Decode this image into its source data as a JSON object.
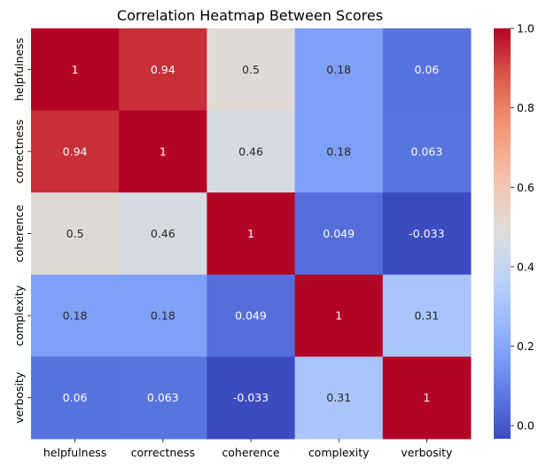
{
  "chart_data": {
    "type": "heatmap",
    "title": "Correlation Heatmap Between Scores",
    "xlabel": "",
    "ylabel": "",
    "x_categories": [
      "helpfulness",
      "correctness",
      "coherence",
      "complexity",
      "verbosity"
    ],
    "y_categories": [
      "helpfulness",
      "correctness",
      "coherence",
      "complexity",
      "verbosity"
    ],
    "values": [
      [
        1,
        0.94,
        0.5,
        0.18,
        0.06
      ],
      [
        0.94,
        1,
        0.46,
        0.18,
        0.063
      ],
      [
        0.5,
        0.46,
        1,
        0.049,
        -0.033
      ],
      [
        0.18,
        0.18,
        0.049,
        1,
        0.31
      ],
      [
        0.06,
        0.063,
        -0.033,
        0.31,
        1
      ]
    ],
    "value_labels": [
      [
        "1",
        "0.94",
        "0.5",
        "0.18",
        "0.06"
      ],
      [
        "0.94",
        "1",
        "0.46",
        "0.18",
        "0.063"
      ],
      [
        "0.5",
        "0.46",
        "1",
        "0.049",
        "-0.033"
      ],
      [
        "0.18",
        "0.18",
        "0.049",
        "1",
        "0.31"
      ],
      [
        "0.06",
        "0.063",
        "-0.033",
        "0.31",
        "1"
      ]
    ],
    "colormap": "coolwarm",
    "vmin": -0.033,
    "vmax": 1,
    "colorbar_ticks": [
      "0.0",
      "0.2",
      "0.4",
      "0.6",
      "0.8",
      "1.0"
    ],
    "colorbar_tick_values": [
      0,
      0.2,
      0.4,
      0.6,
      0.8,
      1.0
    ],
    "grid": false,
    "colorbar_position": "right"
  }
}
